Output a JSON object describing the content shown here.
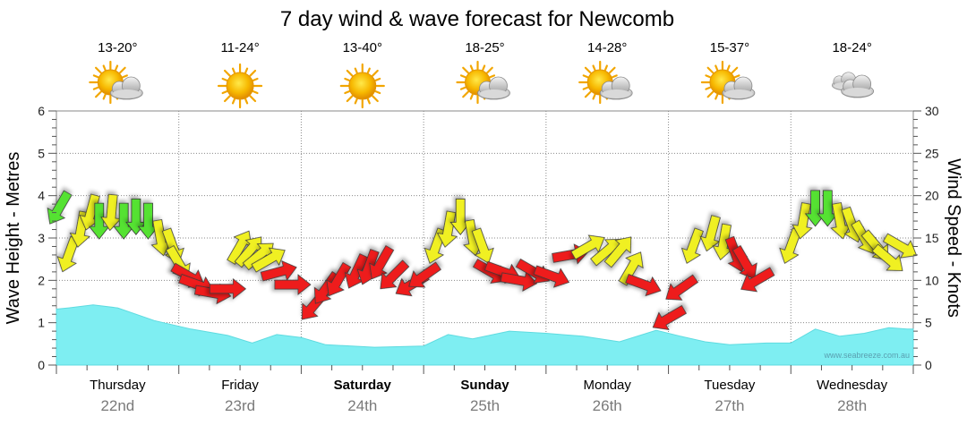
{
  "chart_data": {
    "type": "line",
    "title": "7 day wind & wave forecast for Newcomb",
    "y_left": {
      "label": "Wave Height - Metres",
      "range": [
        0,
        6
      ],
      "ticks": [
        "0",
        "1",
        "2",
        "3",
        "4",
        "5",
        "6"
      ]
    },
    "y_right": {
      "label": "Wind Speed - Knots",
      "range": [
        0,
        30
      ],
      "ticks": [
        "0",
        "5",
        "10",
        "15",
        "20",
        "25",
        "30"
      ]
    },
    "days": [
      {
        "name": "Thursday",
        "date": "22nd",
        "temp": "13-20°",
        "icon": "sun-cloud-icon",
        "bold": false
      },
      {
        "name": "Friday",
        "date": "23rd",
        "temp": "11-24°",
        "icon": "sun-icon",
        "bold": false
      },
      {
        "name": "Saturday",
        "date": "24th",
        "temp": "13-40°",
        "icon": "sun-icon",
        "bold": true
      },
      {
        "name": "Sunday",
        "date": "25th",
        "temp": "18-25°",
        "icon": "sun-cloud-icon",
        "bold": true
      },
      {
        "name": "Monday",
        "date": "26th",
        "temp": "14-28°",
        "icon": "sun-cloud-icon",
        "bold": false
      },
      {
        "name": "Tuesday",
        "date": "27th",
        "temp": "15-37°",
        "icon": "sun-cloud-icon",
        "bold": false
      },
      {
        "name": "Wednesday",
        "date": "28th",
        "temp": "18-24°",
        "icon": "cloud-icon",
        "bold": false
      }
    ],
    "wave_series": {
      "name": "Wave Height",
      "x_days": [
        0,
        0.1,
        0.3,
        0.5,
        0.8,
        1.1,
        1.4,
        1.6,
        1.8,
        2.0,
        2.2,
        2.6,
        3.0,
        3.2,
        3.4,
        3.7,
        4.0,
        4.3,
        4.6,
        4.9,
        5.1,
        5.3,
        5.5,
        5.8,
        6.0,
        6.2,
        6.4,
        6.6,
        6.8,
        6.95
      ],
      "values": [
        1.32,
        1.35,
        1.42,
        1.35,
        1.05,
        0.85,
        0.7,
        0.52,
        0.72,
        0.65,
        0.48,
        0.42,
        0.45,
        0.72,
        0.62,
        0.8,
        0.75,
        0.68,
        0.55,
        0.82,
        0.68,
        0.55,
        0.48,
        0.52,
        0.52,
        0.85,
        0.68,
        0.75,
        0.88,
        0.85
      ]
    },
    "wind_series": {
      "name": "Wind Speed",
      "x_days": [
        0.02,
        0.1,
        0.2,
        0.28,
        0.35,
        0.45,
        0.55,
        0.65,
        0.75,
        0.85,
        0.95,
        1.0,
        1.08,
        1.15,
        1.28,
        1.4,
        1.5,
        1.58,
        1.66,
        1.74,
        1.82,
        1.93,
        2.1,
        2.2,
        2.3,
        2.45,
        2.55,
        2.65,
        2.75,
        2.9,
        3.0,
        3.1,
        3.2,
        3.3,
        3.4,
        3.48,
        3.55,
        3.65,
        3.78,
        3.9,
        4.05,
        4.2,
        4.35,
        4.5,
        4.6,
        4.7,
        4.8,
        5.0,
        5.1,
        5.2,
        5.35,
        5.45,
        5.55,
        5.63,
        5.72,
        6.0,
        6.1,
        6.2,
        6.3,
        6.4,
        6.5,
        6.6,
        6.7,
        6.8,
        6.9
      ],
      "values": [
        18.5,
        13,
        16,
        18,
        17,
        18,
        17,
        17.5,
        17,
        15,
        14,
        12,
        10.5,
        9.5,
        8.5,
        9,
        14,
        13.5,
        13,
        12.5,
        11,
        9.5,
        7,
        9,
        10,
        11,
        11.5,
        12,
        10.5,
        9.5,
        10.5,
        14,
        16,
        17.5,
        15,
        14,
        11,
        11,
        10,
        11,
        10.5,
        13,
        14,
        13.5,
        13.5,
        11.5,
        9.5,
        5.5,
        9,
        14,
        15.5,
        14.5,
        13,
        12,
        10,
        14,
        17,
        18.5,
        18.5,
        17,
        16.5,
        15,
        14,
        12.5,
        14
      ],
      "colors": [
        "#55e233",
        "#f0f020",
        "#f0f020",
        "#f0f020",
        "#55e233",
        "#f0f020",
        "#55e233",
        "#55e233",
        "#55e233",
        "#f0f020",
        "#f0f020",
        "#f0f020",
        "#ee1c1c",
        "#ee1c1c",
        "#ee1c1c",
        "#ee1c1c",
        "#f0f020",
        "#f0f020",
        "#f0f020",
        "#f0f020",
        "#ee1c1c",
        "#ee1c1c",
        "#ee1c1c",
        "#ee1c1c",
        "#ee1c1c",
        "#ee1c1c",
        "#ee1c1c",
        "#ee1c1c",
        "#ee1c1c",
        "#ee1c1c",
        "#ee1c1c",
        "#f0f020",
        "#f0f020",
        "#f0f020",
        "#f0f020",
        "#f0f020",
        "#ee1c1c",
        "#ee1c1c",
        "#ee1c1c",
        "#ee1c1c",
        "#ee1c1c",
        "#ee1c1c",
        "#f0f020",
        "#f0f020",
        "#f0f020",
        "#f0f020",
        "#ee1c1c",
        "#ee1c1c",
        "#ee1c1c",
        "#f0f020",
        "#f0f020",
        "#f0f020",
        "#ee1c1c",
        "#ee1c1c",
        "#ee1c1c",
        "#f0f020",
        "#f0f020",
        "#55e233",
        "#55e233",
        "#f0f020",
        "#f0f020",
        "#f0f020",
        "#f0f020",
        "#f0f020",
        "#f0f020"
      ],
      "directions_deg": [
        210,
        200,
        190,
        195,
        180,
        185,
        180,
        180,
        180,
        170,
        160,
        150,
        120,
        110,
        100,
        90,
        30,
        40,
        50,
        60,
        75,
        90,
        220,
        215,
        210,
        205,
        200,
        210,
        225,
        240,
        235,
        200,
        190,
        180,
        170,
        160,
        120,
        110,
        100,
        120,
        110,
        80,
        60,
        50,
        40,
        30,
        110,
        240,
        235,
        200,
        195,
        190,
        160,
        150,
        240,
        200,
        190,
        180,
        180,
        170,
        160,
        150,
        140,
        130,
        120
      ]
    },
    "colors": {
      "wave_fill": "#7eeef2",
      "wind_low": "#ee1c1c",
      "wind_mid": "#f0f020",
      "wind_high": "#55e233",
      "grid": "#8a8a8a",
      "date_text": "#7a7a7a"
    },
    "watermark": "www.seabreeze.com.au",
    "grid": true
  }
}
